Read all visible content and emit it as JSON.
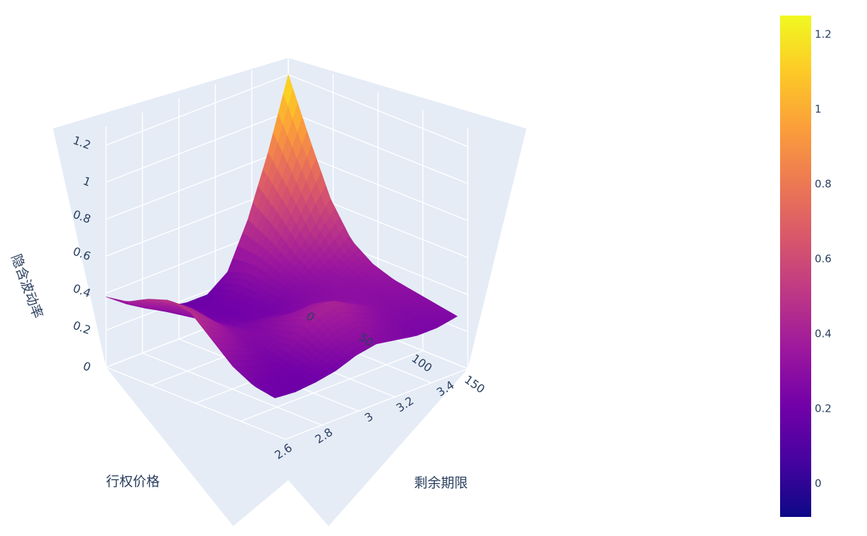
{
  "chart_data": {
    "type": "surface",
    "x_axis": {
      "label": "剩余期限",
      "ticks": [
        "0",
        "50",
        "100",
        "150"
      ]
    },
    "y_axis": {
      "label": "行权价格",
      "ticks": [
        "2.6",
        "2.8",
        "3",
        "3.2",
        "3.4"
      ]
    },
    "z_axis": {
      "label": "隐含波动率",
      "ticks": [
        "0",
        "0.2",
        "0.4",
        "0.6",
        "0.8",
        "1",
        "1.2"
      ],
      "range": [
        0,
        1.3
      ]
    },
    "surface": {
      "remaining_term": [
        0,
        20,
        40,
        60,
        80,
        100,
        120,
        140,
        160
      ],
      "strike_price": [
        2.5,
        2.6,
        2.7,
        2.8,
        2.9,
        3.0,
        3.1,
        3.2,
        3.3,
        3.4
      ],
      "implied_volatility": [
        [
          0.38,
          0.4,
          0.46,
          0.5,
          0.48,
          0.38,
          0.28,
          0.22,
          0.2
        ],
        [
          0.3,
          0.32,
          0.38,
          0.42,
          0.4,
          0.32,
          0.24,
          0.2,
          0.19
        ],
        [
          0.24,
          0.26,
          0.28,
          0.3,
          0.3,
          0.26,
          0.22,
          0.2,
          0.2
        ],
        [
          0.2,
          0.22,
          0.22,
          0.24,
          0.26,
          0.28,
          0.3,
          0.26,
          0.22
        ],
        [
          0.18,
          0.2,
          0.2,
          0.22,
          0.28,
          0.34,
          0.4,
          0.32,
          0.26
        ],
        [
          0.18,
          0.22,
          0.22,
          0.22,
          0.26,
          0.36,
          0.42,
          0.34,
          0.28
        ],
        [
          0.26,
          0.3,
          0.28,
          0.26,
          0.28,
          0.32,
          0.36,
          0.3,
          0.26
        ],
        [
          0.5,
          0.44,
          0.36,
          0.3,
          0.3,
          0.3,
          0.3,
          0.26,
          0.24
        ],
        [
          0.82,
          0.66,
          0.48,
          0.36,
          0.32,
          0.3,
          0.28,
          0.26,
          0.24
        ],
        [
          1.2,
          0.9,
          0.62,
          0.44,
          0.36,
          0.32,
          0.3,
          0.28,
          0.26
        ]
      ]
    },
    "colorscale": [
      "#0d0887",
      "#46039f",
      "#7201a8",
      "#9c179e",
      "#bd3786",
      "#d8576b",
      "#ed7953",
      "#fb9f3a",
      "#fdca26",
      "#f0f921"
    ],
    "colorbar": {
      "ticks": [
        "0",
        "0.2",
        "0.4",
        "0.6",
        "0.8",
        "1",
        "1.2"
      ],
      "range": [
        -0.09,
        1.25
      ],
      "tick_values": [
        0,
        0.2,
        0.4,
        0.6,
        0.8,
        1,
        1.2
      ]
    },
    "grid": true,
    "colorbar_position": "right"
  }
}
